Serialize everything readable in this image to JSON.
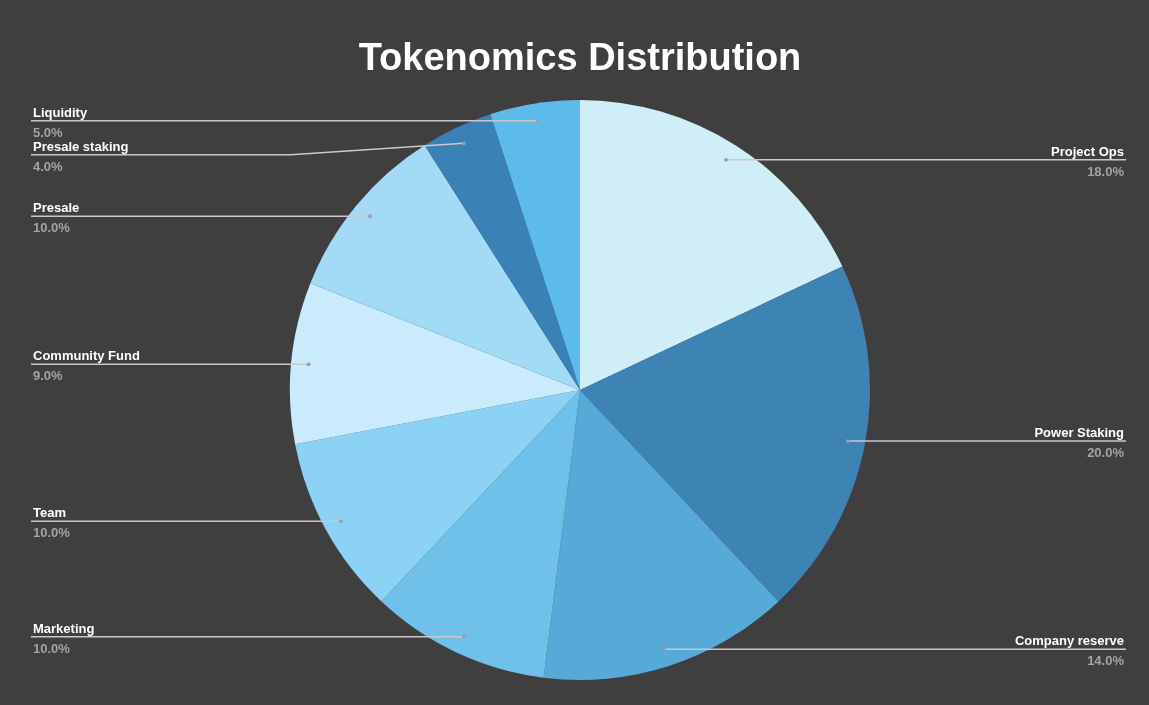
{
  "chart_data": {
    "type": "pie",
    "title": "Tokenomics Distribution",
    "categories": [
      "Project Ops",
      "Power Staking",
      "Company reserve",
      "Marketing",
      "Team",
      "Community Fund",
      "Presale",
      "Presale staking",
      "Liquidity"
    ],
    "values": [
      18,
      20,
      14,
      10,
      10,
      9,
      10,
      4,
      5
    ],
    "value_labels": [
      "18.0%",
      "20.0%",
      "14.0%",
      "10.0%",
      "10.0%",
      "9.0%",
      "10.0%",
      "4.0%",
      "5.0%"
    ],
    "colors": [
      "#d0eef8",
      "#3d84b5",
      "#57a9d8",
      "#6fc1ea",
      "#8cd2f4",
      "#c9ebfb",
      "#a3daf6",
      "#3a82b5",
      "#5dbbec"
    ]
  }
}
